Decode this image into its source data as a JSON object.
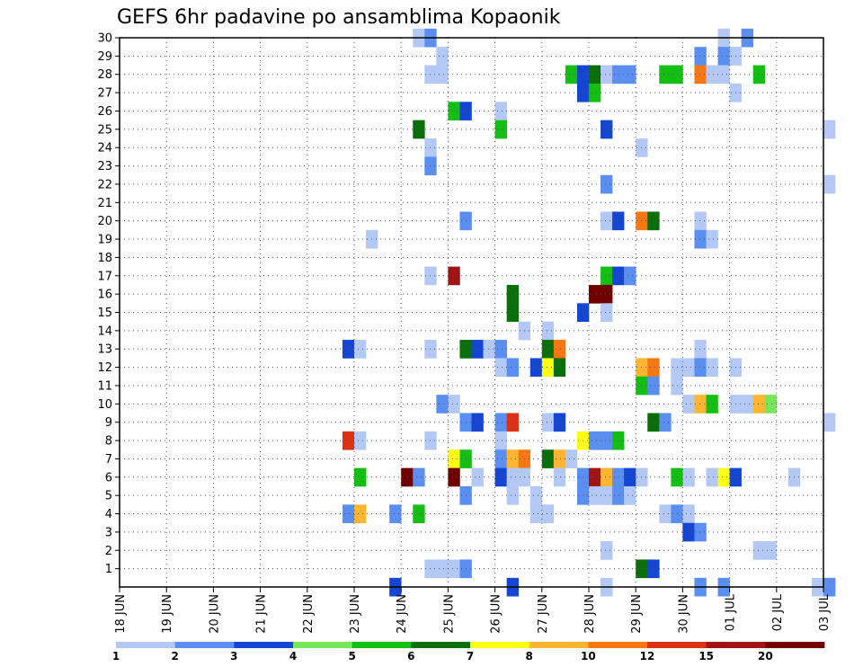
{
  "chart_data": {
    "type": "heatmap",
    "title": "GEFS 6hr padavine po ansamblima Kopaonik",
    "x_tick_labels": [
      "18 JUN",
      "19 JUN",
      "20 JUN",
      "21 JUN",
      "22 JUN",
      "23 JUN",
      "24 JUN",
      "25 JUN",
      "26 JUN",
      "27 JUN",
      "28 JUN",
      "29 JUN",
      "30 JUN",
      "01 JUL",
      "02 JUL",
      "03 JUL"
    ],
    "y_tick_labels": [
      "1",
      "2",
      "3",
      "4",
      "5",
      "6",
      "7",
      "8",
      "9",
      "10",
      "11",
      "12",
      "13",
      "14",
      "15",
      "16",
      "17",
      "18",
      "19",
      "20",
      "21",
      "22",
      "23",
      "24",
      "25",
      "26",
      "27",
      "28",
      "29",
      "30"
    ],
    "x_range": [
      "18 JUN",
      "03 JUL"
    ],
    "y_range": [
      0,
      30
    ],
    "grid": true,
    "legend": {
      "position": "bottom",
      "labels": [
        "1",
        "2",
        "3",
        "4",
        "5",
        "6",
        "7",
        "8",
        "10",
        "12",
        "15",
        "20"
      ],
      "colors": [
        "#b4c8f5",
        "#5a8ef0",
        "#1446d2",
        "#78e65a",
        "#14be14",
        "#0a6e0a",
        "#ffff14",
        "#ffb432",
        "#f57814",
        "#dc3214",
        "#a01414",
        "#6e0000"
      ]
    },
    "cells": [
      [
        6.25,
        1,
        30
      ],
      [
        6.5,
        2,
        30
      ],
      [
        12.75,
        1,
        30
      ],
      [
        13.25,
        2,
        30
      ],
      [
        6.75,
        1,
        29
      ],
      [
        12.25,
        2,
        29
      ],
      [
        12.75,
        2,
        29
      ],
      [
        13.0,
        1,
        29
      ],
      [
        6.5,
        1,
        28
      ],
      [
        6.75,
        1,
        28
      ],
      [
        9.5,
        5,
        28
      ],
      [
        9.75,
        3,
        28
      ],
      [
        10.0,
        6,
        28
      ],
      [
        10.25,
        1,
        28
      ],
      [
        10.5,
        2,
        28
      ],
      [
        10.75,
        2,
        28
      ],
      [
        11.5,
        5,
        28
      ],
      [
        11.75,
        5,
        28
      ],
      [
        12.25,
        9,
        28
      ],
      [
        12.5,
        1,
        28
      ],
      [
        12.75,
        1,
        28
      ],
      [
        13.5,
        5,
        28
      ],
      [
        9.75,
        3,
        27
      ],
      [
        10.0,
        5,
        27
      ],
      [
        13.0,
        1,
        27
      ],
      [
        7.0,
        5,
        26
      ],
      [
        7.25,
        3,
        26
      ],
      [
        8.0,
        1,
        26
      ],
      [
        6.25,
        6,
        25
      ],
      [
        8.0,
        5,
        25
      ],
      [
        10.25,
        3,
        25
      ],
      [
        15.0,
        1,
        25
      ],
      [
        6.5,
        1,
        24
      ],
      [
        11.0,
        1,
        24
      ],
      [
        6.5,
        2,
        23
      ],
      [
        10.25,
        2,
        22
      ],
      [
        15.0,
        1,
        22
      ],
      [
        7.25,
        2,
        20
      ],
      [
        10.25,
        1,
        20
      ],
      [
        10.5,
        3,
        20
      ],
      [
        11.0,
        9,
        20
      ],
      [
        11.25,
        6,
        20
      ],
      [
        12.25,
        1,
        20
      ],
      [
        5.25,
        1,
        19
      ],
      [
        12.25,
        2,
        19
      ],
      [
        12.5,
        1,
        19
      ],
      [
        6.5,
        1,
        17
      ],
      [
        7.0,
        11,
        17
      ],
      [
        10.25,
        5,
        17
      ],
      [
        10.5,
        3,
        17
      ],
      [
        10.75,
        2,
        17
      ],
      [
        8.25,
        6,
        16
      ],
      [
        10.0,
        12,
        16
      ],
      [
        10.25,
        12,
        16
      ],
      [
        8.25,
        6,
        15
      ],
      [
        9.75,
        3,
        15
      ],
      [
        10.25,
        1,
        15
      ],
      [
        8.5,
        1,
        14
      ],
      [
        9.0,
        1,
        14
      ],
      [
        4.75,
        3,
        13
      ],
      [
        5.0,
        1,
        13
      ],
      [
        6.5,
        1,
        13
      ],
      [
        7.25,
        6,
        13
      ],
      [
        7.5,
        3,
        13
      ],
      [
        7.75,
        1,
        13
      ],
      [
        8.0,
        2,
        13
      ],
      [
        9.0,
        6,
        13
      ],
      [
        9.25,
        9,
        13
      ],
      [
        12.25,
        1,
        13
      ],
      [
        8.0,
        1,
        12
      ],
      [
        8.25,
        2,
        12
      ],
      [
        8.75,
        3,
        12
      ],
      [
        9.0,
        7,
        12
      ],
      [
        9.25,
        6,
        12
      ],
      [
        11.0,
        8,
        12
      ],
      [
        11.25,
        9,
        12
      ],
      [
        11.75,
        1,
        12
      ],
      [
        12.0,
        1,
        12
      ],
      [
        12.25,
        2,
        12
      ],
      [
        12.5,
        1,
        12
      ],
      [
        13.0,
        1,
        12
      ],
      [
        11.0,
        5,
        11
      ],
      [
        11.25,
        2,
        11
      ],
      [
        11.75,
        1,
        11
      ],
      [
        6.75,
        2,
        10
      ],
      [
        7.0,
        1,
        10
      ],
      [
        12.0,
        1,
        10
      ],
      [
        12.25,
        8,
        10
      ],
      [
        12.5,
        5,
        10
      ],
      [
        13.0,
        1,
        10
      ],
      [
        13.25,
        1,
        10
      ],
      [
        13.5,
        8,
        10
      ],
      [
        13.75,
        4,
        10
      ],
      [
        7.25,
        2,
        9
      ],
      [
        7.5,
        3,
        9
      ],
      [
        8.0,
        2,
        9
      ],
      [
        8.25,
        10,
        9
      ],
      [
        9.0,
        1,
        9
      ],
      [
        9.25,
        3,
        9
      ],
      [
        11.25,
        6,
        9
      ],
      [
        11.5,
        2,
        9
      ],
      [
        15.0,
        1,
        9
      ],
      [
        4.75,
        10,
        8
      ],
      [
        5.0,
        1,
        8
      ],
      [
        6.5,
        1,
        8
      ],
      [
        8.0,
        1,
        8
      ],
      [
        9.75,
        7,
        8
      ],
      [
        10.0,
        2,
        8
      ],
      [
        10.25,
        2,
        8
      ],
      [
        10.5,
        5,
        8
      ],
      [
        7.0,
        7,
        7
      ],
      [
        7.25,
        5,
        7
      ],
      [
        8.0,
        2,
        7
      ],
      [
        8.25,
        8,
        7
      ],
      [
        8.5,
        9,
        7
      ],
      [
        9.0,
        6,
        7
      ],
      [
        9.25,
        8,
        7
      ],
      [
        9.5,
        1,
        7
      ],
      [
        5.0,
        5,
        6
      ],
      [
        6.0,
        12,
        6
      ],
      [
        6.25,
        2,
        6
      ],
      [
        7.0,
        12,
        6
      ],
      [
        7.5,
        1,
        6
      ],
      [
        8.0,
        3,
        6
      ],
      [
        8.25,
        1,
        6
      ],
      [
        8.5,
        1,
        6
      ],
      [
        9.25,
        1,
        6
      ],
      [
        9.75,
        2,
        6
      ],
      [
        10.0,
        11,
        6
      ],
      [
        10.25,
        8,
        6
      ],
      [
        10.5,
        2,
        6
      ],
      [
        10.75,
        3,
        6
      ],
      [
        11.0,
        1,
        6
      ],
      [
        11.75,
        5,
        6
      ],
      [
        12.0,
        1,
        6
      ],
      [
        12.5,
        1,
        6
      ],
      [
        12.75,
        7,
        6
      ],
      [
        13.0,
        3,
        6
      ],
      [
        14.25,
        1,
        6
      ],
      [
        7.25,
        2,
        5
      ],
      [
        8.25,
        1,
        5
      ],
      [
        8.75,
        1,
        5
      ],
      [
        9.75,
        2,
        5
      ],
      [
        10.0,
        1,
        5
      ],
      [
        10.25,
        1,
        5
      ],
      [
        10.5,
        2,
        5
      ],
      [
        10.75,
        1,
        5
      ],
      [
        4.75,
        2,
        4
      ],
      [
        5.0,
        8,
        4
      ],
      [
        5.75,
        2,
        4
      ],
      [
        6.25,
        5,
        4
      ],
      [
        8.75,
        1,
        4
      ],
      [
        9.0,
        1,
        4
      ],
      [
        11.5,
        1,
        4
      ],
      [
        11.75,
        2,
        4
      ],
      [
        12.0,
        1,
        4
      ],
      [
        12.0,
        3,
        3
      ],
      [
        12.25,
        2,
        3
      ],
      [
        10.25,
        1,
        2
      ],
      [
        13.5,
        1,
        2
      ],
      [
        13.75,
        1,
        2
      ],
      [
        6.5,
        1,
        1
      ],
      [
        6.75,
        1,
        1
      ],
      [
        7.0,
        1,
        1
      ],
      [
        7.25,
        2,
        1
      ],
      [
        11.0,
        6,
        1
      ],
      [
        11.25,
        3,
        1
      ],
      [
        5.75,
        3,
        0
      ],
      [
        8.25,
        3,
        0
      ],
      [
        10.25,
        1,
        0
      ],
      [
        12.25,
        2,
        0
      ],
      [
        12.75,
        2,
        0
      ],
      [
        14.75,
        1,
        0
      ],
      [
        15.0,
        2,
        0
      ]
    ]
  }
}
